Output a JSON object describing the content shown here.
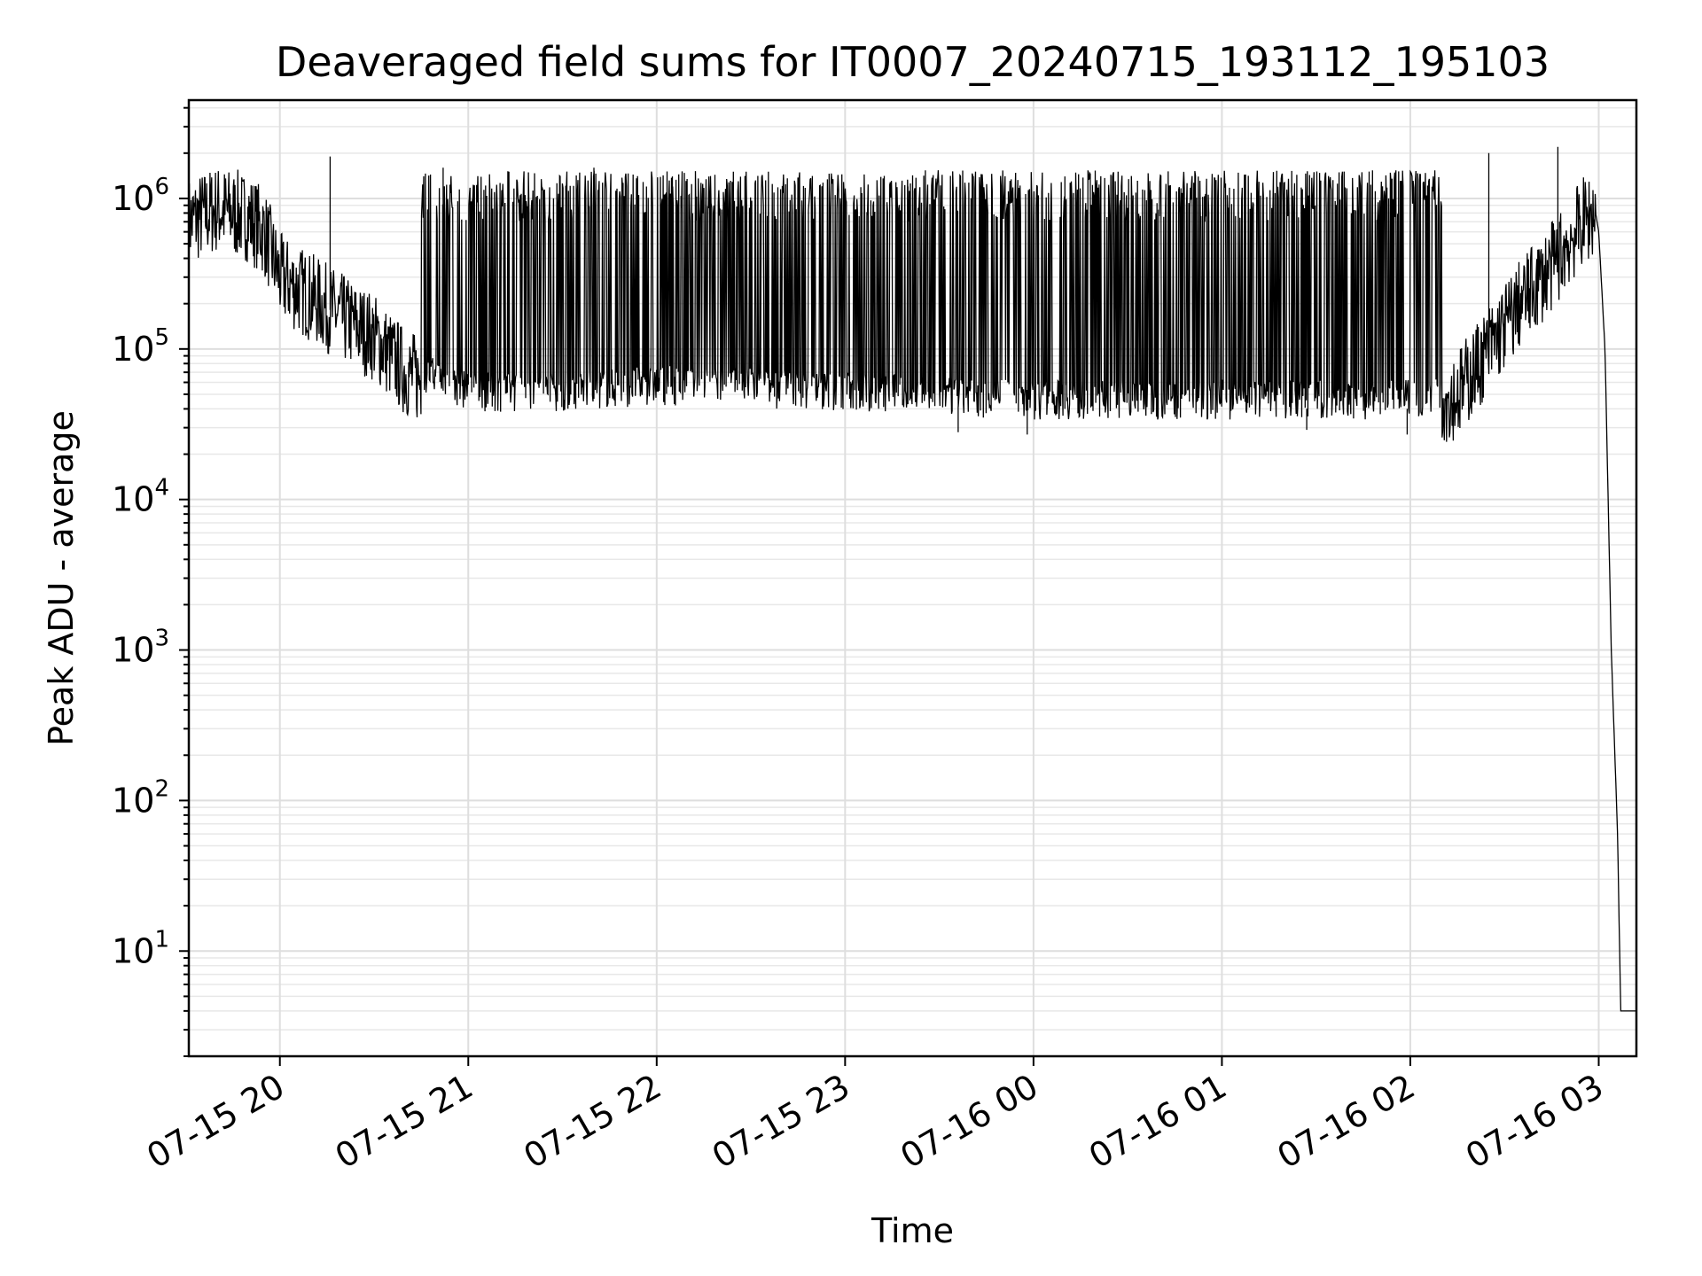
{
  "chart_data": {
    "type": "line",
    "title": "Deaveraged field sums for IT0007_20240715_193112_195103",
    "xlabel": "Time",
    "ylabel": "Peak ADU - average",
    "yscale": "log",
    "grid": true,
    "grid_minor": true,
    "xlim": [
      "2024-07-15 19:31",
      "2024-07-16 03:12"
    ],
    "ylim": [
      2,
      4500000
    ],
    "x_ticks": [
      {
        "value": "2024-07-15 20:00",
        "label": "07-15 20"
      },
      {
        "value": "2024-07-15 21:00",
        "label": "07-15 21"
      },
      {
        "value": "2024-07-15 22:00",
        "label": "07-15 22"
      },
      {
        "value": "2024-07-15 23:00",
        "label": "07-15 23"
      },
      {
        "value": "2024-07-16 00:00",
        "label": "07-16 00"
      },
      {
        "value": "2024-07-16 01:00",
        "label": "07-16 01"
      },
      {
        "value": "2024-07-16 02:00",
        "label": "07-16 02"
      },
      {
        "value": "2024-07-16 03:00",
        "label": "07-16 03"
      }
    ],
    "y_ticks": [
      {
        "value": 10,
        "base": "10",
        "exp": "1"
      },
      {
        "value": 100,
        "base": "10",
        "exp": "2"
      },
      {
        "value": 1000,
        "base": "10",
        "exp": "3"
      },
      {
        "value": 10000,
        "base": "10",
        "exp": "4"
      },
      {
        "value": 100000,
        "base": "10",
        "exp": "5"
      },
      {
        "value": 1000000,
        "base": "10",
        "exp": "6"
      }
    ],
    "series": [
      {
        "color": "#000000",
        "points": [
          [
            "2024-07-15 19:31",
            700000
          ],
          [
            "2024-07-15 19:40",
            850000
          ],
          [
            "2024-07-15 19:50",
            750000
          ],
          [
            "2024-07-15 19:55",
            600000
          ],
          [
            "2024-07-15 20:00",
            300000
          ],
          [
            "2024-07-15 20:10",
            220000
          ],
          [
            "2024-07-15 20:20",
            160000
          ],
          [
            "2024-07-15 20:30",
            120000
          ],
          [
            "2024-07-15 20:40",
            70000
          ],
          [
            "2024-07-15 20:50",
            55000
          ],
          [
            "2024-07-15 21:00",
            45000
          ],
          [
            "2024-07-15 21:30",
            45000
          ],
          [
            "2024-07-15 22:00",
            50000
          ],
          [
            "2024-07-15 22:30",
            48000
          ],
          [
            "2024-07-15 23:00",
            45000
          ],
          [
            "2024-07-15 23:30",
            42000
          ],
          [
            "2024-07-16 00:00",
            40000
          ],
          [
            "2024-07-16 00:30",
            40000
          ],
          [
            "2024-07-16 01:00",
            40000
          ],
          [
            "2024-07-16 01:30",
            40000
          ],
          [
            "2024-07-16 02:00",
            40000
          ],
          [
            "2024-07-16 02:15",
            50000
          ],
          [
            "2024-07-16 02:25",
            100000
          ],
          [
            "2024-07-16 02:35",
            200000
          ],
          [
            "2024-07-16 02:45",
            350000
          ],
          [
            "2024-07-16 02:55",
            700000
          ],
          [
            "2024-07-16 02:59",
            800000
          ],
          [
            "2024-07-16 03:00",
            600000
          ],
          [
            "2024-07-16 03:02",
            100000
          ],
          [
            "2024-07-16 03:04",
            1000
          ],
          [
            "2024-07-16 03:06",
            60
          ],
          [
            "2024-07-16 03:07",
            4
          ],
          [
            "2024-07-16 03:12",
            4
          ]
        ]
      }
    ],
    "fluctuation_envelope": {
      "from": "2024-07-15 20:45",
      "to": "2024-07-16 02:10",
      "high": 1400000,
      "low": 40000
    },
    "spikes": [
      [
        "2024-07-15 20:16",
        1900000
      ],
      [
        "2024-07-15 20:52",
        1600000
      ],
      [
        "2024-07-15 21:40",
        1600000
      ],
      [
        "2024-07-15 22:05",
        1400000
      ],
      [
        "2024-07-15 23:20",
        1200000
      ],
      [
        "2024-07-16 00:10",
        1400000
      ],
      [
        "2024-07-16 02:25",
        2000000
      ],
      [
        "2024-07-16 02:47",
        2200000
      ]
    ],
    "dips": [
      [
        "2024-07-15 23:36",
        28000
      ],
      [
        "2024-07-15 23:58",
        27000
      ],
      [
        "2024-07-16 01:27",
        29000
      ],
      [
        "2024-07-16 01:59",
        27000
      ]
    ]
  }
}
